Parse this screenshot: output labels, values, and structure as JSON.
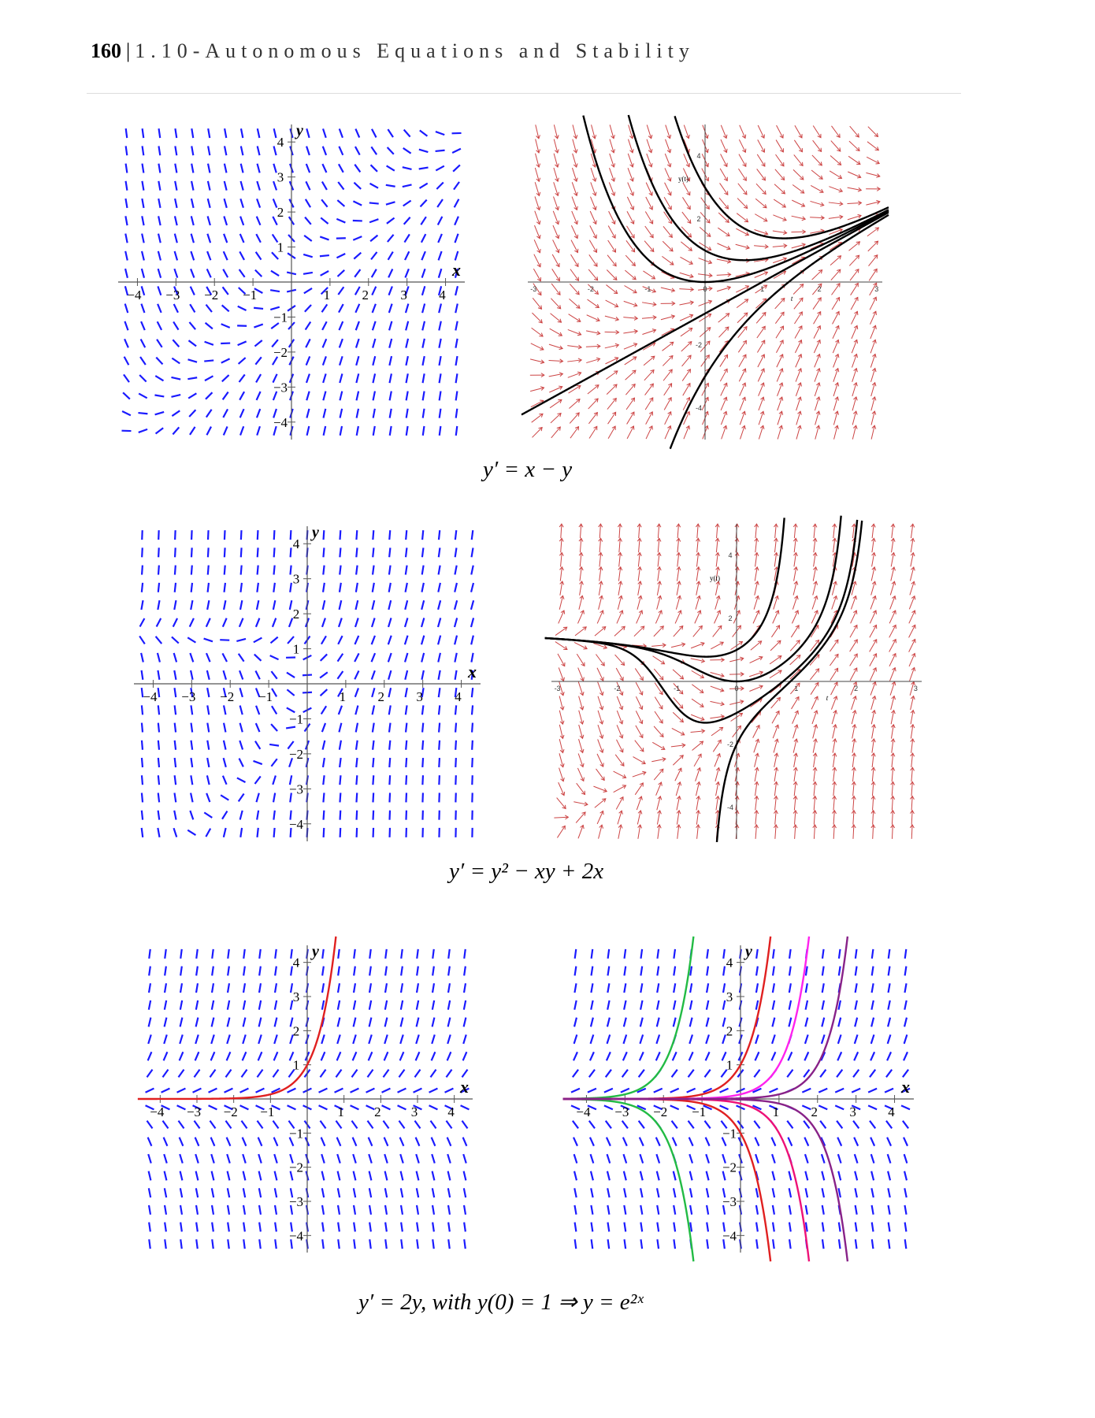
{
  "header": {
    "page_number": "160",
    "separator": "|",
    "chapter_title": "1.10-Autonomous Equations and Stability"
  },
  "captions": {
    "eq1": "y′ = x − y",
    "eq2": "y′ = y² − xy + 2x",
    "eq3": "y′ = 2y,   with y(0) = 1   ⇒   y = e²ˣ"
  },
  "colors": {
    "blue_slope": "#1a1aff",
    "red_arrow": "#cc4444",
    "solution": "#000000",
    "red_curve": "#e02020",
    "green_curve": "#22bb44",
    "magenta_curve": "#ff22ee",
    "pink_curve": "#ee1177",
    "purple_curve": "#882288"
  },
  "figures": [
    {
      "kind": "slope-field",
      "equation": "x - y",
      "x_range": [
        -4.5,
        4.5
      ],
      "y_range": [
        -4.5,
        4.5
      ],
      "axis_labels": {
        "x": "x",
        "y": "y"
      },
      "ticks": [
        -4,
        -3,
        -2,
        -1,
        1,
        2,
        3,
        4
      ],
      "tick_labels": [
        "−4",
        "−3",
        "−2",
        "−1",
        "1",
        "2",
        "3",
        "4"
      ],
      "curves": []
    },
    {
      "kind": "direction-field",
      "equation": "x - y",
      "x_range": [
        -3.1,
        3.1
      ],
      "y_range": [
        -5,
        5
      ],
      "axis_labels": {
        "x": "t",
        "y": "y(t)"
      },
      "x_tick_labels": [
        "-3",
        "-2",
        "-1",
        "0",
        "1",
        "2",
        "3"
      ],
      "y_tick_labels": [
        "4",
        "2",
        "-2",
        "-4"
      ],
      "curves": [
        {
          "t0": 0,
          "y0": 0
        },
        {
          "t0": 0,
          "y0": 1
        },
        {
          "t0": 0,
          "y0": 3
        },
        {
          "t0": 0,
          "y0": -1
        },
        {
          "t0": 0,
          "y0": -3
        }
      ]
    },
    {
      "kind": "slope-field",
      "equation": "y^2 - x*y + 2*x",
      "x_range": [
        -4.5,
        4.5
      ],
      "y_range": [
        -4.5,
        4.5
      ],
      "axis_labels": {
        "x": "x",
        "y": "y"
      },
      "ticks": [
        -4,
        -3,
        -2,
        -1,
        1,
        2,
        3,
        4
      ],
      "tick_labels": [
        "−4",
        "−3",
        "−2",
        "−1",
        "1",
        "2",
        "3",
        "4"
      ],
      "curves": []
    },
    {
      "kind": "direction-field",
      "equation": "y^2 - x*y + 2*x",
      "x_range": [
        -3.1,
        3.1
      ],
      "y_range": [
        -5,
        5
      ],
      "axis_labels": {
        "x": "t",
        "y": "y(t)"
      },
      "x_tick_labels": [
        "-3",
        "-2",
        "-1",
        "0",
        "1",
        "2",
        "3"
      ],
      "y_tick_labels": [
        "4",
        "2",
        "-2",
        "-4"
      ],
      "curves": [
        {
          "t0": 0,
          "y0": 0
        },
        {
          "t0": 0,
          "y0": 1
        },
        {
          "t0": 0,
          "y0": -1
        },
        {
          "t0": 0,
          "y0": -2
        }
      ]
    },
    {
      "kind": "slope-field",
      "equation": "2*y",
      "x_range": [
        -4.5,
        4.5
      ],
      "y_range": [
        -4.5,
        4.5
      ],
      "axis_labels": {
        "x": "x",
        "y": "y"
      },
      "ticks": [
        -4,
        -3,
        -2,
        -1,
        1,
        2,
        3,
        4
      ],
      "tick_labels": [
        "−4",
        "−3",
        "−2",
        "−1",
        "1",
        "2",
        "3",
        "4"
      ],
      "curves": [
        {
          "t0": 0,
          "y0": 1,
          "color": "#e02020"
        }
      ]
    },
    {
      "kind": "slope-field",
      "equation": "2*y",
      "x_range": [
        -4.5,
        4.5
      ],
      "y_range": [
        -4.5,
        4.5
      ],
      "axis_labels": {
        "x": "x",
        "y": "y"
      },
      "ticks": [
        -4,
        -3,
        -2,
        -1,
        1,
        2,
        3,
        4
      ],
      "tick_labels": [
        "−4",
        "−3",
        "−2",
        "−1",
        "1",
        "2",
        "3",
        "4"
      ],
      "curves": [
        {
          "t0": -2,
          "y0": 1,
          "color": "#22bb44"
        },
        {
          "t0": -2,
          "y0": -1,
          "color": "#22bb44"
        },
        {
          "t0": 0,
          "y0": 1,
          "color": "#e02020"
        },
        {
          "t0": 0,
          "y0": -1,
          "color": "#e02020"
        },
        {
          "t0": 1,
          "y0": 1,
          "color": "#ff22ee"
        },
        {
          "t0": 1,
          "y0": -1,
          "color": "#ee1177"
        },
        {
          "t0": 2,
          "y0": 1,
          "color": "#882288"
        },
        {
          "t0": 2,
          "y0": -1,
          "color": "#882288"
        }
      ]
    }
  ]
}
